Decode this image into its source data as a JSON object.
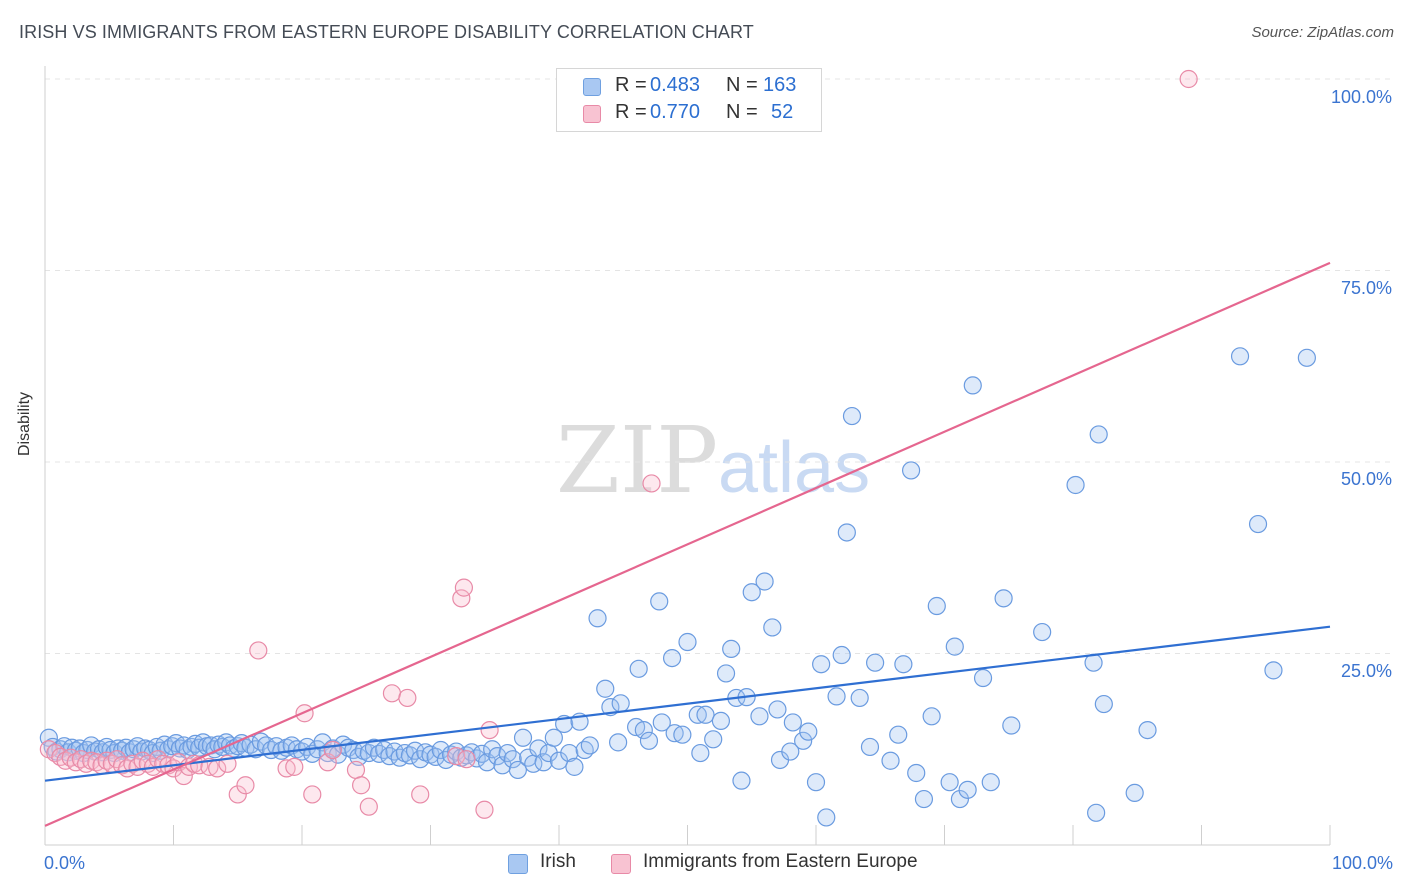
{
  "title": "IRISH VS IMMIGRANTS FROM EASTERN EUROPE DISABILITY CORRELATION CHART",
  "source": "Source: ZipAtlas.com",
  "watermark": {
    "zip": "ZIP",
    "atlas": "atlas"
  },
  "legend": {
    "rows": [
      {
        "r_label": "R =",
        "r_value": "0.483",
        "n_label": "N =",
        "n_value": "163",
        "color": "#a9c8f2",
        "border": "#6fa0e0"
      },
      {
        "r_label": "R =",
        "r_value": "0.770",
        "n_label": "N =",
        "n_value": "52",
        "color": "#f8c3d2",
        "border": "#e88aa7"
      }
    ]
  },
  "bottom_legend": [
    {
      "label": "Irish",
      "color": "#a9c8f2",
      "border": "#6fa0e0"
    },
    {
      "label": "Immigrants from Eastern Europe",
      "color": "#f8c3d2",
      "border": "#e88aa7"
    }
  ],
  "chart_data": {
    "type": "scatter",
    "ylabel": "Disability",
    "xlim": [
      0,
      100
    ],
    "ylim": [
      0,
      100
    ],
    "x_tick_labels": [
      "0.0%",
      "100.0%"
    ],
    "y_tick_labels": [
      "100.0%",
      "75.0%",
      "50.0%",
      "25.0%"
    ],
    "grid": "horizontal dashed",
    "legend_position": "top-center",
    "series": [
      {
        "name": "Irish",
        "color": "#6a9be0",
        "fill": "rgba(160,195,240,0.35)",
        "trend_color": "#2f6fd2",
        "trend": {
          "x0": 0,
          "y0": 8.4,
          "x1": 100,
          "y1": 28.5
        },
        "points": [
          [
            0.3,
            14.0
          ],
          [
            0.6,
            12.8
          ],
          [
            0.9,
            12.2
          ],
          [
            1.2,
            12.5
          ],
          [
            1.5,
            12.9
          ],
          [
            1.8,
            12.1
          ],
          [
            2.1,
            12.7
          ],
          [
            2.4,
            12.3
          ],
          [
            2.7,
            12.6
          ],
          [
            3.0,
            12.0
          ],
          [
            3.3,
            12.4
          ],
          [
            3.6,
            13.0
          ],
          [
            3.9,
            12.2
          ],
          [
            4.2,
            12.5
          ],
          [
            4.5,
            12.1
          ],
          [
            4.8,
            12.8
          ],
          [
            5.1,
            12.4
          ],
          [
            5.4,
            12.0
          ],
          [
            5.7,
            12.6
          ],
          [
            6.0,
            12.3
          ],
          [
            6.3,
            12.7
          ],
          [
            6.6,
            12.1
          ],
          [
            6.9,
            12.5
          ],
          [
            7.2,
            12.9
          ],
          [
            7.5,
            12.2
          ],
          [
            7.8,
            12.6
          ],
          [
            8.1,
            12.4
          ],
          [
            8.4,
            12.0
          ],
          [
            8.7,
            12.8
          ],
          [
            9.0,
            12.3
          ],
          [
            9.3,
            13.1
          ],
          [
            9.6,
            12.5
          ],
          [
            9.9,
            12.9
          ],
          [
            10.2,
            13.3
          ],
          [
            10.5,
            12.6
          ],
          [
            10.8,
            13.0
          ],
          [
            11.1,
            12.4
          ],
          [
            11.4,
            12.8
          ],
          [
            11.7,
            13.2
          ],
          [
            12.0,
            12.7
          ],
          [
            12.3,
            13.4
          ],
          [
            12.6,
            12.9
          ],
          [
            12.9,
            13.0
          ],
          [
            13.2,
            12.5
          ],
          [
            13.5,
            13.1
          ],
          [
            13.8,
            12.8
          ],
          [
            14.1,
            13.4
          ],
          [
            14.4,
            13.0
          ],
          [
            14.7,
            12.6
          ],
          [
            15.0,
            12.9
          ],
          [
            15.3,
            13.3
          ],
          [
            15.6,
            12.7
          ],
          [
            16.0,
            13.1
          ],
          [
            16.4,
            12.5
          ],
          [
            16.8,
            13.5
          ],
          [
            17.2,
            13.0
          ],
          [
            17.6,
            12.4
          ],
          [
            18.0,
            12.9
          ],
          [
            18.4,
            12.3
          ],
          [
            18.8,
            12.7
          ],
          [
            19.2,
            13.0
          ],
          [
            19.6,
            12.5
          ],
          [
            20.0,
            12.2
          ],
          [
            20.4,
            12.8
          ],
          [
            20.8,
            11.9
          ],
          [
            21.2,
            12.5
          ],
          [
            21.6,
            13.4
          ],
          [
            22.0,
            12.0
          ],
          [
            22.4,
            12.6
          ],
          [
            22.8,
            11.8
          ],
          [
            23.2,
            13.1
          ],
          [
            23.6,
            12.7
          ],
          [
            24.0,
            12.4
          ],
          [
            24.4,
            11.5
          ],
          [
            24.8,
            12.3
          ],
          [
            25.2,
            12.0
          ],
          [
            25.6,
            12.7
          ],
          [
            26.0,
            11.9
          ],
          [
            26.4,
            12.4
          ],
          [
            26.8,
            11.6
          ],
          [
            27.2,
            12.2
          ],
          [
            27.6,
            11.4
          ],
          [
            28.0,
            12.0
          ],
          [
            28.4,
            11.7
          ],
          [
            28.8,
            12.3
          ],
          [
            29.2,
            11.2
          ],
          [
            29.6,
            12.1
          ],
          [
            30.0,
            11.8
          ],
          [
            30.4,
            11.5
          ],
          [
            30.8,
            12.4
          ],
          [
            31.2,
            11.1
          ],
          [
            31.6,
            11.8
          ],
          [
            32.0,
            12.2
          ],
          [
            32.4,
            11.4
          ],
          [
            32.8,
            11.7
          ],
          [
            33.2,
            12.1
          ],
          [
            33.6,
            11.3
          ],
          [
            34.0,
            11.9
          ],
          [
            34.4,
            10.8
          ],
          [
            34.8,
            12.5
          ],
          [
            35.2,
            11.6
          ],
          [
            35.6,
            10.4
          ],
          [
            36.0,
            12.0
          ],
          [
            36.4,
            11.2
          ],
          [
            36.8,
            9.8
          ],
          [
            37.2,
            14.0
          ],
          [
            37.6,
            11.4
          ],
          [
            38.0,
            10.6
          ],
          [
            38.4,
            12.6
          ],
          [
            38.8,
            10.8
          ],
          [
            39.2,
            12.0
          ],
          [
            39.6,
            14.0
          ],
          [
            40.0,
            11.0
          ],
          [
            40.4,
            15.8
          ],
          [
            40.8,
            12.0
          ],
          [
            41.2,
            10.2
          ],
          [
            41.6,
            16.1
          ],
          [
            42.0,
            12.4
          ],
          [
            42.4,
            13.0
          ],
          [
            43.0,
            29.6
          ],
          [
            43.6,
            20.4
          ],
          [
            44.0,
            18.0
          ],
          [
            44.6,
            13.4
          ],
          [
            44.8,
            18.5
          ],
          [
            46.0,
            15.4
          ],
          [
            46.2,
            23.0
          ],
          [
            46.6,
            15.0
          ],
          [
            47.0,
            13.6
          ],
          [
            47.8,
            31.8
          ],
          [
            48.0,
            16.0
          ],
          [
            48.8,
            24.4
          ],
          [
            49.0,
            14.6
          ],
          [
            49.6,
            14.4
          ],
          [
            50.0,
            26.5
          ],
          [
            50.8,
            17.0
          ],
          [
            51.0,
            12.0
          ],
          [
            51.4,
            17.0
          ],
          [
            52.0,
            13.8
          ],
          [
            52.6,
            16.2
          ],
          [
            53.0,
            22.4
          ],
          [
            53.4,
            25.6
          ],
          [
            53.8,
            19.2
          ],
          [
            54.2,
            8.4
          ],
          [
            54.6,
            19.3
          ],
          [
            55.0,
            33.0
          ],
          [
            55.6,
            16.8
          ],
          [
            56.0,
            34.4
          ],
          [
            56.6,
            28.4
          ],
          [
            57.0,
            17.7
          ],
          [
            57.2,
            11.1
          ],
          [
            58.0,
            12.2
          ],
          [
            58.2,
            16.0
          ],
          [
            59.0,
            13.6
          ],
          [
            59.4,
            14.8
          ],
          [
            60.0,
            8.2
          ],
          [
            60.4,
            23.6
          ],
          [
            60.8,
            3.6
          ],
          [
            61.6,
            19.4
          ],
          [
            62.0,
            24.8
          ],
          [
            62.4,
            40.8
          ],
          [
            62.8,
            56.0
          ],
          [
            63.4,
            19.2
          ],
          [
            64.2,
            12.8
          ],
          [
            64.6,
            23.8
          ],
          [
            65.8,
            11.0
          ],
          [
            66.4,
            14.4
          ],
          [
            66.8,
            23.6
          ],
          [
            67.4,
            48.9
          ],
          [
            67.8,
            9.4
          ],
          [
            68.4,
            6.0
          ],
          [
            69.0,
            16.8
          ],
          [
            69.4,
            31.2
          ],
          [
            70.4,
            8.2
          ],
          [
            70.8,
            25.9
          ],
          [
            71.2,
            6.0
          ],
          [
            71.8,
            7.2
          ],
          [
            72.2,
            60.0
          ],
          [
            73.0,
            21.8
          ],
          [
            73.6,
            8.2
          ],
          [
            74.6,
            32.2
          ],
          [
            75.2,
            15.6
          ],
          [
            77.6,
            27.8
          ],
          [
            80.2,
            47.0
          ],
          [
            81.6,
            23.8
          ],
          [
            81.8,
            4.2
          ],
          [
            82.0,
            53.6
          ],
          [
            82.4,
            18.4
          ],
          [
            84.8,
            6.8
          ],
          [
            85.8,
            15.0
          ],
          [
            93.0,
            63.8
          ],
          [
            94.4,
            41.9
          ],
          [
            95.6,
            22.8
          ],
          [
            98.2,
            63.6
          ]
        ]
      },
      {
        "name": "Immigrants from Eastern Europe",
        "color": "#e88aa7",
        "fill": "rgba(248,190,206,0.35)",
        "trend_color": "#e5668f",
        "trend": {
          "x0": 0,
          "y0": 2.5,
          "x1": 100,
          "y1": 76.0
        },
        "points": [
          [
            0.3,
            12.5
          ],
          [
            0.8,
            12.0
          ],
          [
            1.2,
            11.5
          ],
          [
            1.6,
            11.0
          ],
          [
            2.0,
            11.4
          ],
          [
            2.4,
            10.8
          ],
          [
            2.8,
            11.2
          ],
          [
            3.2,
            10.6
          ],
          [
            3.6,
            11.0
          ],
          [
            4.0,
            10.8
          ],
          [
            4.4,
            10.4
          ],
          [
            4.8,
            11.0
          ],
          [
            5.2,
            10.6
          ],
          [
            5.6,
            11.2
          ],
          [
            6.0,
            10.4
          ],
          [
            6.4,
            10.0
          ],
          [
            6.8,
            10.6
          ],
          [
            7.2,
            10.2
          ],
          [
            7.6,
            11.0
          ],
          [
            8.0,
            10.6
          ],
          [
            8.4,
            10.2
          ],
          [
            8.8,
            11.2
          ],
          [
            9.2,
            10.6
          ],
          [
            9.6,
            10.4
          ],
          [
            10.0,
            10.0
          ],
          [
            10.4,
            10.8
          ],
          [
            10.8,
            9.0
          ],
          [
            11.2,
            10.2
          ],
          [
            11.6,
            10.6
          ],
          [
            12.0,
            10.4
          ],
          [
            12.8,
            10.2
          ],
          [
            13.4,
            10.0
          ],
          [
            14.2,
            10.6
          ],
          [
            15.0,
            6.6
          ],
          [
            15.6,
            7.8
          ],
          [
            16.6,
            25.4
          ],
          [
            18.8,
            10.0
          ],
          [
            19.4,
            10.2
          ],
          [
            20.2,
            17.2
          ],
          [
            20.8,
            6.6
          ],
          [
            22.0,
            10.8
          ],
          [
            22.4,
            12.4
          ],
          [
            24.2,
            9.8
          ],
          [
            24.6,
            7.8
          ],
          [
            25.2,
            5.0
          ],
          [
            27.0,
            19.8
          ],
          [
            28.2,
            19.2
          ],
          [
            29.2,
            6.6
          ],
          [
            32.0,
            11.6
          ],
          [
            32.4,
            32.2
          ],
          [
            32.6,
            33.6
          ],
          [
            32.8,
            11.2
          ],
          [
            34.2,
            4.6
          ],
          [
            34.6,
            15.0
          ],
          [
            47.2,
            47.2
          ],
          [
            89.0,
            100.0
          ]
        ]
      }
    ]
  }
}
